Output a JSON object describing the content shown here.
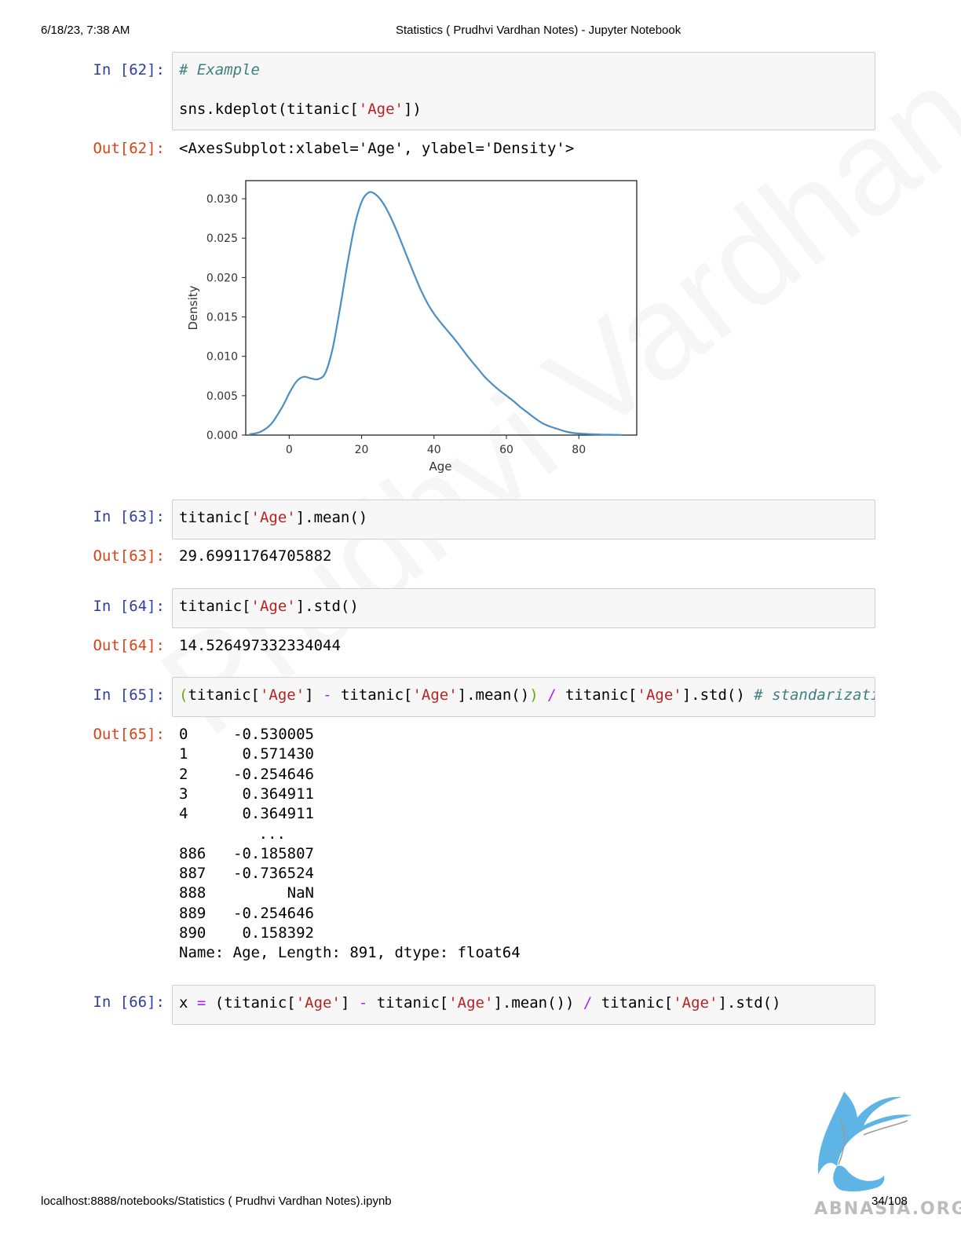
{
  "header": {
    "datetime": "6/18/23, 7:38 AM",
    "title": "Statistics ( Prudhvi Vardhan Notes) - Jupyter Notebook"
  },
  "footer": {
    "url": "localhost:8888/notebooks/Statistics ( Prudhvi Vardhan Notes).ipynb",
    "page": "34/108"
  },
  "watermark": "Prudhvi Vardhan",
  "logo_text": "ABNASIA.ORG",
  "cells": {
    "c62": {
      "in_prompt": "In [62]:",
      "comment": "# Example",
      "code": {
        "a": "sns.kdeplot(titanic[",
        "s": "'Age'",
        "b": "])"
      },
      "out_prompt": "Out[62]:",
      "output": "<AxesSubplot:xlabel='Age', ylabel='Density'>"
    },
    "c63": {
      "in_prompt": "In [63]:",
      "code": {
        "a": "titanic[",
        "s": "'Age'",
        "b": "].mean()"
      },
      "out_prompt": "Out[63]:",
      "output": "29.69911764705882"
    },
    "c64": {
      "in_prompt": "In [64]:",
      "code": {
        "a": "titanic[",
        "s": "'Age'",
        "b": "].std()"
      },
      "out_prompt": "Out[64]:",
      "output": "14.526497332334044"
    },
    "c65": {
      "in_prompt": "In [65]:",
      "code": {
        "p1": "(",
        "t1": "titanic[",
        "s1": "'Age'",
        "t2": "] ",
        "m": "-",
        "t3": " titanic[",
        "s2": "'Age'",
        "t4": "].mean()",
        "p2": ")",
        "t5": " ",
        "d": "/",
        "t6": " titanic[",
        "s3": "'Age'",
        "t7": "].std() ",
        "c": "# standarizati"
      },
      "out_prompt": "Out[65]:",
      "series": [
        {
          "idx": "0",
          "val": "-0.530005"
        },
        {
          "idx": "1",
          "val": "0.571430"
        },
        {
          "idx": "2",
          "val": "-0.254646"
        },
        {
          "idx": "3",
          "val": "0.364911"
        },
        {
          "idx": "4",
          "val": "0.364911"
        },
        {
          "idx": "",
          "val": "..."
        },
        {
          "idx": "886",
          "val": "-0.185807"
        },
        {
          "idx": "887",
          "val": "-0.736524"
        },
        {
          "idx": "888",
          "val": "NaN"
        },
        {
          "idx": "889",
          "val": "-0.254646"
        },
        {
          "idx": "890",
          "val": "0.158392"
        }
      ],
      "series_footer": "Name: Age, Length: 891, dtype: float64"
    },
    "c66": {
      "in_prompt": "In [66]:",
      "code": {
        "t1": "x ",
        "e": "=",
        "t2": " (titanic[",
        "s1": "'Age'",
        "t3": "] ",
        "m": "-",
        "t4": " titanic[",
        "s2": "'Age'",
        "t5": "].mean()) ",
        "d": "/",
        "t6": " titanic[",
        "s3": "'Age'",
        "t7": "].std()"
      }
    }
  },
  "chart_data": {
    "type": "line",
    "title": "",
    "xlabel": "Age",
    "ylabel": "Density",
    "xlim": [
      -12,
      96
    ],
    "ylim": [
      0,
      0.0323
    ],
    "xticks": [
      0,
      20,
      40,
      60,
      80
    ],
    "yticks": [
      "0.000",
      "0.005",
      "0.010",
      "0.015",
      "0.020",
      "0.025",
      "0.030"
    ],
    "grid": false,
    "line_color": "#4c8fc4",
    "x": [
      -11,
      -8,
      -5,
      -2,
      0,
      2,
      4,
      6,
      8,
      10,
      12,
      14,
      16,
      18,
      20,
      22,
      24,
      26,
      28,
      30,
      32,
      34,
      36,
      38,
      40,
      42,
      44,
      46,
      48,
      50,
      52,
      54,
      56,
      58,
      60,
      62,
      64,
      66,
      68,
      70,
      72,
      74,
      76,
      78,
      80,
      84,
      88,
      92
    ],
    "y": [
      0.0001,
      0.0004,
      0.0014,
      0.0035,
      0.0053,
      0.0068,
      0.0074,
      0.0072,
      0.0071,
      0.0079,
      0.011,
      0.016,
      0.0215,
      0.0264,
      0.0296,
      0.0308,
      0.0305,
      0.0294,
      0.0277,
      0.0256,
      0.0233,
      0.021,
      0.0188,
      0.0169,
      0.0154,
      0.0142,
      0.0131,
      0.012,
      0.0108,
      0.0096,
      0.0085,
      0.0074,
      0.0065,
      0.0057,
      0.005,
      0.0043,
      0.0035,
      0.0028,
      0.0021,
      0.0015,
      0.0011,
      0.0008,
      0.0005,
      0.0003,
      0.0002,
      0.0001,
      5e-05,
      2e-05
    ]
  }
}
